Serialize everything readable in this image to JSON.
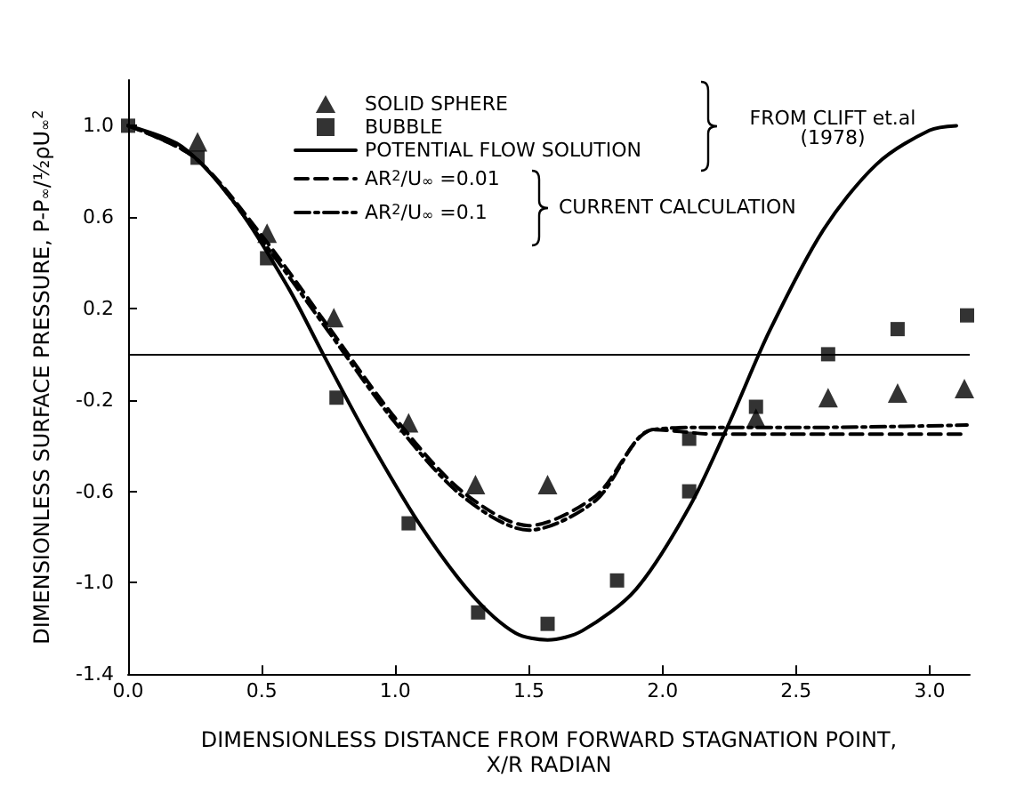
{
  "chart_data": {
    "type": "line",
    "xlabel": "DIMENSIONLESS DISTANCE FROM FORWARD STAGNATION POINT,\nX/R RADIAN",
    "ylabel": "DIMENSIONLESS SURFACE PRESSURE, P-P$_{∞}$/½ρU$_{∞}$$^{2}$",
    "xlim": [
      0,
      3.15
    ],
    "ylim": [
      -1.4,
      1.2
    ],
    "xticks": [
      {
        "value": 0,
        "label": "0.0"
      },
      {
        "value": 0.5,
        "label": "0.5"
      },
      {
        "value": 1,
        "label": "1.0"
      },
      {
        "value": 1.5,
        "label": "1.5"
      },
      {
        "value": 2,
        "label": "2.0"
      },
      {
        "value": 2.5,
        "label": "2.5"
      },
      {
        "value": 3,
        "label": "3.0"
      }
    ],
    "yticks": [
      {
        "value": -1.4,
        "label": "-1.4"
      },
      {
        "value": -1,
        "label": "-1.0"
      },
      {
        "value": -0.6,
        "label": "-0.6"
      },
      {
        "value": -0.2,
        "label": "-0.2"
      },
      {
        "value": 0.2,
        "label": "0.2"
      },
      {
        "value": 0.6,
        "label": "0.6"
      },
      {
        "value": 1,
        "label": "1.0"
      }
    ],
    "grid": false,
    "legend": "top",
    "series": [
      {
        "name": "SOLID SPHERE",
        "type": "scatter",
        "marker": "triangle",
        "color": "#000000",
        "x": [
          0.26,
          0.52,
          0.77,
          1.05,
          1.3,
          1.57,
          2.35,
          2.62,
          2.88,
          3.13
        ],
        "values": [
          0.93,
          0.53,
          0.16,
          -0.3,
          -0.57,
          -0.57,
          -0.28,
          -0.19,
          -0.17,
          -0.15
        ]
      },
      {
        "name": "BUBBLE",
        "type": "scatter",
        "marker": "square",
        "color": "#000000",
        "x": [
          0,
          0.26,
          0.52,
          0.78,
          1.05,
          1.31,
          1.57,
          1.83,
          2.1,
          2.1,
          2.35,
          2.62,
          2.88,
          3.14
        ],
        "values": [
          1.0,
          0.86,
          0.42,
          -0.19,
          -0.74,
          -1.13,
          -1.18,
          -0.99,
          -0.6,
          -0.37,
          -0.23,
          0.0,
          0.11,
          0.17
        ]
      },
      {
        "name": "POTENTIAL FLOW SOLUTION",
        "line_style": "solid",
        "color": "#000000",
        "x": [
          0,
          0.2,
          0.4,
          0.6,
          0.73,
          0.9,
          1.1,
          1.3,
          1.45,
          1.57,
          1.7,
          1.9,
          2.1,
          2.25,
          2.4,
          2.6,
          2.8,
          3.0,
          3.1
        ],
        "values": [
          1.0,
          0.91,
          0.66,
          0.29,
          0.0,
          -0.37,
          -0.76,
          -1.07,
          -1.22,
          -1.25,
          -1.21,
          -1.03,
          -0.67,
          -0.3,
          0.1,
          0.54,
          0.83,
          0.98,
          1.0
        ]
      },
      {
        "name": "AR$^{2}$/U$_{∞}$ =0.01",
        "line_style": "dashed",
        "color": "#000000",
        "x": [
          0,
          0.25,
          0.5,
          0.75,
          1.0,
          1.25,
          1.5,
          1.75,
          1.97,
          2.2,
          2.6,
          3.14
        ],
        "values": [
          1.0,
          0.86,
          0.52,
          0.12,
          -0.28,
          -0.6,
          -0.75,
          -0.62,
          -0.33,
          -0.35,
          -0.35,
          -0.35
        ]
      },
      {
        "name": "AR$^{2}$/U$_{∞}$ =0.1",
        "line_style": "dashdot",
        "color": "#000000",
        "x": [
          0,
          0.25,
          0.5,
          0.75,
          1.0,
          1.25,
          1.5,
          1.75,
          1.96,
          2.2,
          2.6,
          3.14
        ],
        "values": [
          1.0,
          0.86,
          0.5,
          0.1,
          -0.3,
          -0.62,
          -0.77,
          -0.64,
          -0.33,
          -0.32,
          -0.32,
          -0.31
        ]
      }
    ],
    "ref_lines": [
      {
        "axis": "y",
        "value": 0,
        "color": "#000000",
        "line_style": "solid"
      }
    ],
    "annotations": [
      "FROM CLIFT et.al\n(1978)",
      "CURRENT CALCULATION"
    ]
  }
}
